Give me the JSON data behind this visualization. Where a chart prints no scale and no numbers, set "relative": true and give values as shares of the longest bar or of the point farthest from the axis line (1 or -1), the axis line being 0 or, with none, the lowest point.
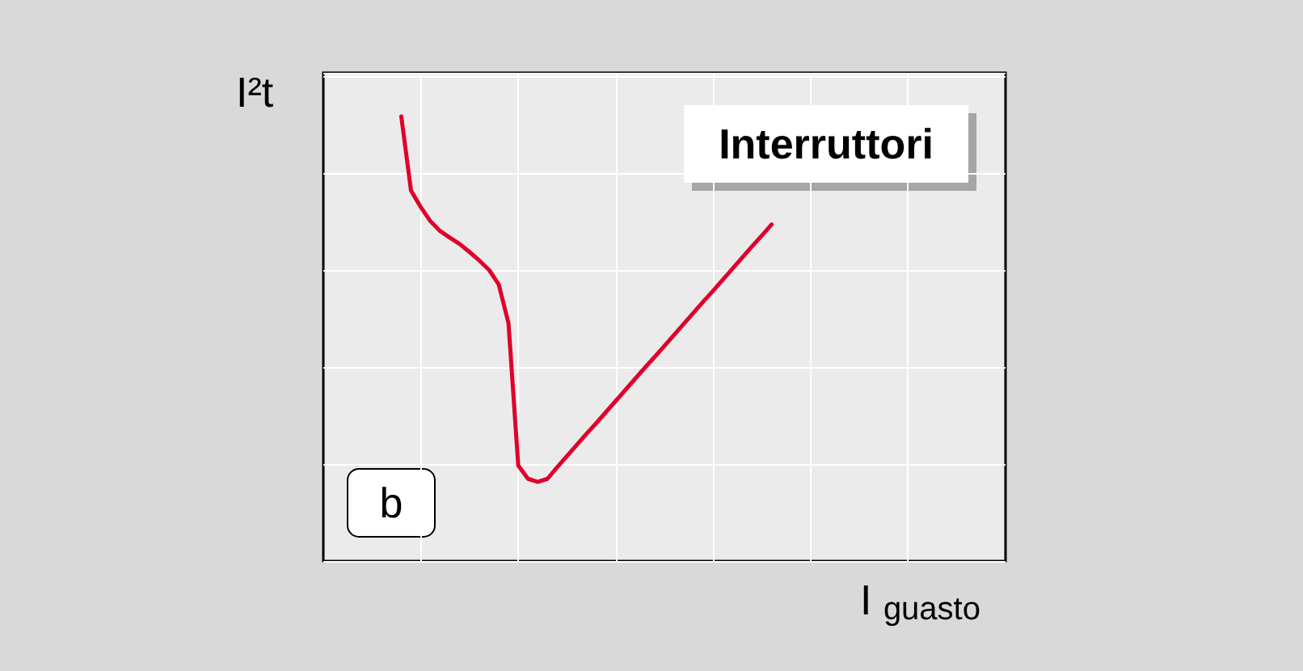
{
  "chart_data": {
    "type": "line",
    "relative": true,
    "xlabel": "I $_{guasto}$",
    "ylabel": "I²t",
    "annotations": [
      "Interruttori",
      "b"
    ],
    "categories": [
      null,
      null,
      null,
      null,
      null,
      null,
      null,
      null,
      null,
      null,
      null,
      null,
      null,
      null,
      null,
      null,
      null,
      null,
      null,
      null,
      null,
      null,
      null,
      null,
      null,
      null,
      null,
      null,
      null,
      null,
      null,
      null,
      null,
      null,
      null,
      null,
      null,
      null,
      null,
      null,
      null,
      null,
      null,
      null,
      null,
      null,
      null,
      null,
      null,
      null,
      null,
      null,
      null,
      null,
      null,
      null,
      null,
      null,
      null,
      null,
      null,
      null,
      null,
      null,
      null,
      null,
      null,
      null,
      null,
      null,
      null
    ],
    "series": [
      {
        "color": "#e0002a",
        "values": [
          null,
          null,
          null,
          null,
          null,
          null,
          null,
          null,
          1.0,
          0.833,
          0.796,
          0.764,
          0.742,
          0.727,
          0.713,
          0.695,
          0.676,
          0.655,
          0.622,
          0.535,
          0.215,
          0.185,
          0.178,
          0.185,
          0.211,
          0.236,
          0.261,
          0.286,
          0.31,
          0.335,
          0.36,
          0.385,
          0.41,
          0.435,
          0.459,
          0.484,
          0.509,
          0.534,
          0.559,
          0.584,
          0.608,
          0.633,
          0.658,
          0.683,
          0.708,
          0.732,
          0.757,
          null,
          null,
          null,
          null,
          null,
          null,
          null,
          null,
          null,
          null,
          null,
          null,
          null,
          null,
          null,
          null,
          null,
          null,
          null,
          null,
          null,
          null,
          null,
          null
        ]
      }
    ],
    "grid": true,
    "line_style": "solid"
  }
}
